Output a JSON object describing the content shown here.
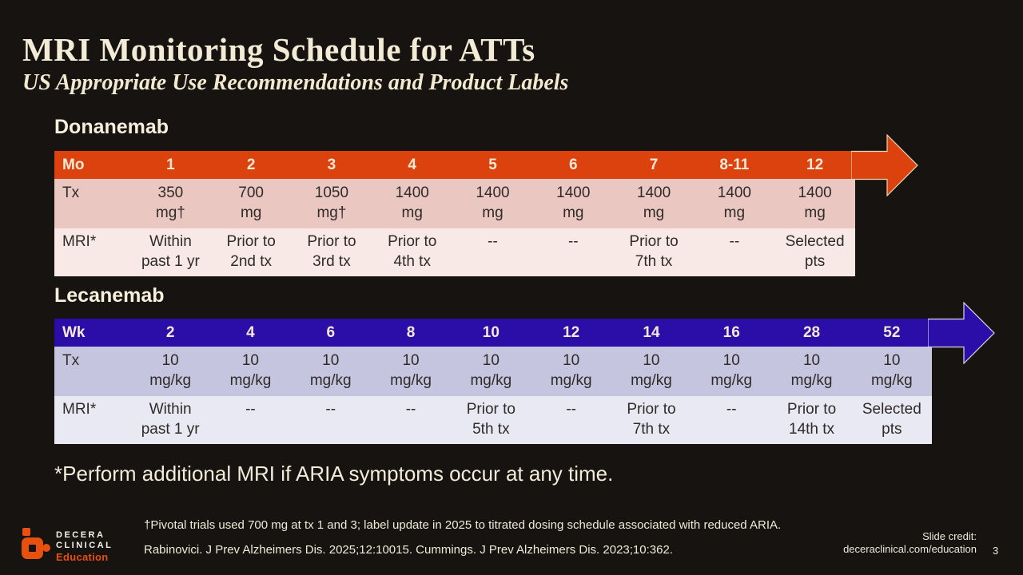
{
  "slide": {
    "title": "MRI Monitoring Schedule for ATTs",
    "subtitle": "US Appropriate Use Recommendations and Product Labels",
    "footnote": "*Perform additional MRI if ARIA symptoms occur at any time.",
    "dagger_note": "†Pivotal trials used 700 mg at tx 1 and 3; label update in 2025 to titrated dosing schedule associated with reduced ARIA.",
    "references": "Rabinovici. J Prev Alzheimers Dis. 2025;12:10015. Cummings. J Prev Alzheimers Dis. 2023;10:362.",
    "credit_label": "Slide credit:",
    "credit_url": "deceraclinical.com/education",
    "page_number": "3",
    "logo": {
      "line1": "DECERA",
      "line2": "CLINICAL",
      "line3": "Education"
    }
  },
  "colors": {
    "background": "#171310",
    "title_text": "#f2ecd7",
    "donanemab_header": "#dc420e",
    "donanemab_row_tx": "#ebc7c2",
    "donanemab_row_mri": "#f8e9e6",
    "lecanemab_header": "#2b0ea7",
    "lecanemab_row_tx": "#c5c5df",
    "lecanemab_row_mri": "#e9e9f3",
    "logo_orange": "#e8500f"
  },
  "tables": [
    {
      "name": "Donanemab",
      "unit_label": "Mo",
      "header": [
        "1",
        "2",
        "3",
        "4",
        "5",
        "6",
        "7",
        "8-11",
        "12"
      ],
      "rows": [
        {
          "label": "Tx",
          "cells": [
            "350\nmg†",
            "700\nmg",
            "1050\nmg†",
            "1400\nmg",
            "1400\nmg",
            "1400\nmg",
            "1400\nmg",
            "1400\nmg",
            "1400\nmg"
          ]
        },
        {
          "label": "MRI*",
          "cells": [
            "Within\npast 1 yr",
            "Prior to\n2nd tx",
            "Prior to\n3rd tx",
            "Prior to\n4th tx",
            "--",
            "--",
            "Prior to\n7th tx",
            "--",
            "Selected\npts"
          ]
        }
      ],
      "theme": {
        "header_bg": "#dc420e",
        "row0_bg": "#ebc7c2",
        "row1_bg": "#f8e9e6",
        "arrow_stroke": "#e8d7ba"
      }
    },
    {
      "name": "Lecanemab",
      "unit_label": "Wk",
      "header": [
        "2",
        "4",
        "6",
        "8",
        "10",
        "12",
        "14",
        "16",
        "28",
        "52"
      ],
      "rows": [
        {
          "label": "Tx",
          "cells": [
            "10\nmg/kg",
            "10\nmg/kg",
            "10\nmg/kg",
            "10\nmg/kg",
            "10\nmg/kg",
            "10\nmg/kg",
            "10\nmg/kg",
            "10\nmg/kg",
            "10\nmg/kg",
            "10\nmg/kg"
          ]
        },
        {
          "label": "MRI*",
          "cells": [
            "Within\npast 1 yr",
            "--",
            "--",
            "--",
            "Prior to\n5th tx",
            "--",
            "Prior to\n7th tx",
            "--",
            "Prior to\n14th tx",
            "Selected\npts"
          ]
        }
      ],
      "theme": {
        "header_bg": "#2b0ea7",
        "row0_bg": "#c5c5df",
        "row1_bg": "#e9e9f3",
        "arrow_stroke": "#d8d8ee"
      }
    }
  ]
}
